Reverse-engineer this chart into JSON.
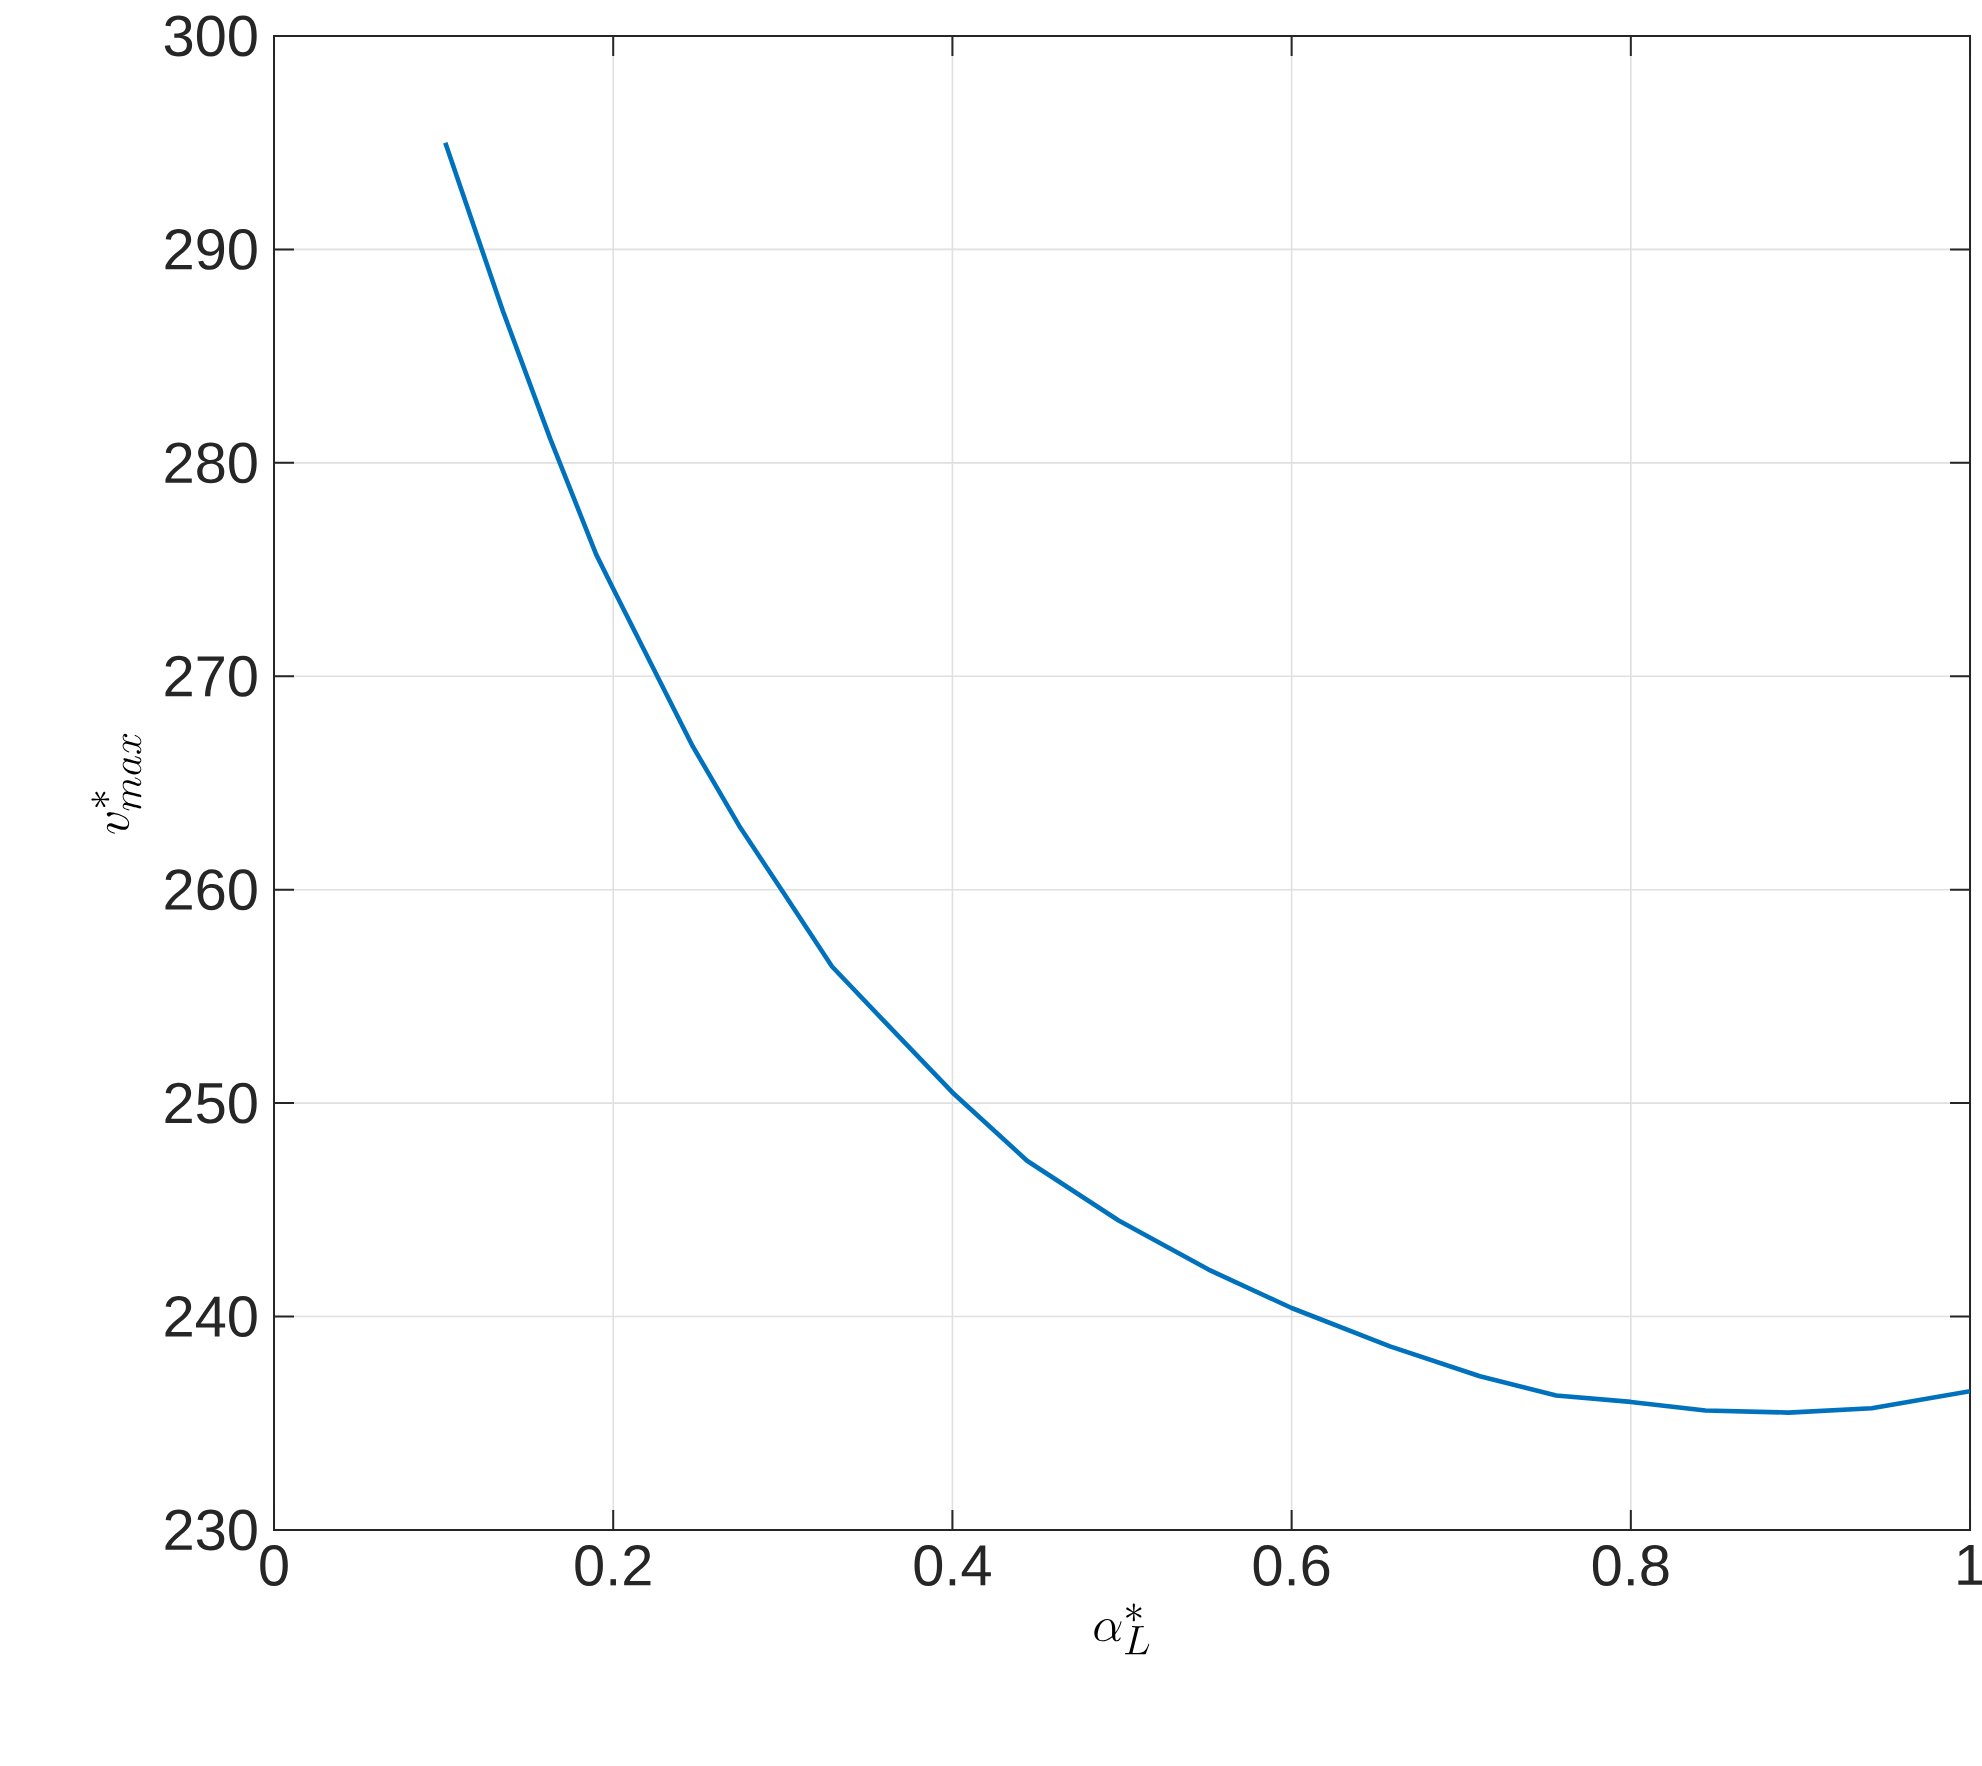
{
  "chart_data": {
    "type": "line",
    "xlabel": "\\alpha_L^*",
    "ylabel": "v_{max}^*",
    "xlim": [
      0,
      1
    ],
    "ylim": [
      230,
      300
    ],
    "xticks": [
      0,
      0.2,
      0.4,
      0.6,
      0.8,
      1
    ],
    "yticks": [
      230,
      240,
      250,
      260,
      270,
      280,
      290,
      300
    ],
    "grid": true,
    "series": [
      {
        "color": "#0072bd",
        "x": [
          0.101,
          0.135,
          0.163,
          0.19,
          0.2,
          0.226,
          0.247,
          0.275,
          0.3,
          0.329,
          0.359,
          0.4,
          0.444,
          0.498,
          0.551,
          0.6,
          0.658,
          0.711,
          0.756,
          0.8,
          0.844,
          0.893,
          0.942,
          1.0
        ],
        "values": [
          295.0,
          287.1,
          281.1,
          275.7,
          274.1,
          270.0,
          266.7,
          262.9,
          259.9,
          256.4,
          253.9,
          250.5,
          247.3,
          244.5,
          242.2,
          240.4,
          238.6,
          237.2,
          236.3,
          236.0,
          235.6,
          235.5,
          235.7,
          236.5
        ]
      }
    ]
  }
}
